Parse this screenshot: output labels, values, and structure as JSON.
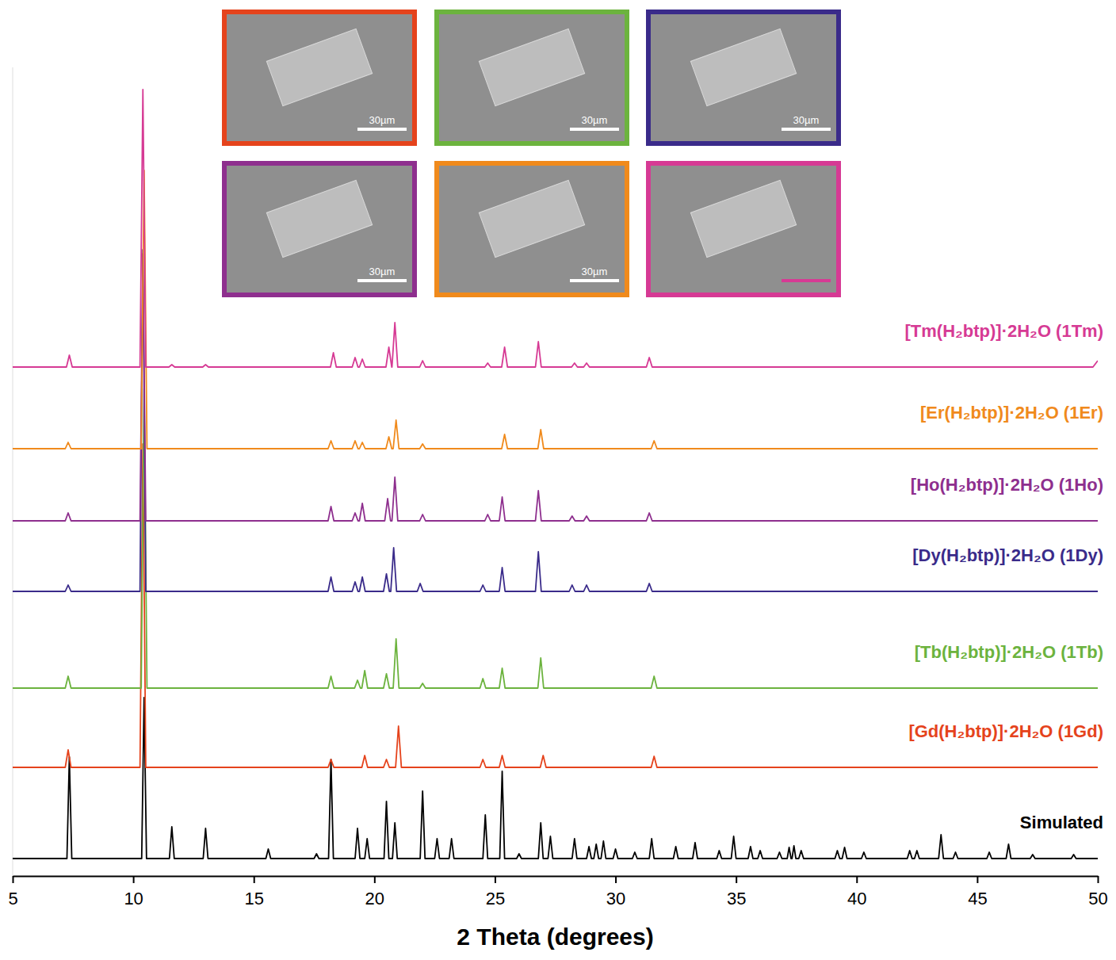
{
  "chart_data": {
    "type": "line",
    "xlabel": "2 Theta (degrees)",
    "xlim": [
      5,
      50
    ],
    "xticks": [
      5,
      10,
      15,
      20,
      25,
      30,
      35,
      40,
      45,
      50
    ],
    "ylim": [
      -2,
      100
    ],
    "tick_labels": "x",
    "grid": false,
    "series": [
      {
        "name": "[Tm(H₂btp)]·2H₂O (1Tm)",
        "color": "#d63a94",
        "x": [
          5,
          7.23,
          7.35,
          7.47,
          10.28,
          10.4,
          10.52,
          11.48,
          11.6,
          11.72,
          12.88,
          13.0,
          13.12,
          18.18,
          18.3,
          18.42,
          19.08,
          19.2,
          19.32,
          19.38,
          19.5,
          19.62,
          20.48,
          20.6,
          20.72,
          20.73,
          20.85,
          20.97,
          21.88,
          22.0,
          22.12,
          24.58,
          24.7,
          24.82,
          25.28,
          25.4,
          25.52,
          26.68,
          26.8,
          26.92,
          28.18,
          28.3,
          28.42,
          28.68,
          28.8,
          28.92,
          31.28,
          31.4,
          31.52,
          49.8,
          50
        ],
        "values": [
          62.2,
          62.2,
          63.7,
          62.2,
          62.2,
          97.2,
          62.2,
          62.2,
          62.5,
          62.2,
          62.2,
          62.5,
          62.2,
          62.2,
          64.0,
          62.2,
          62.2,
          63.4,
          62.2,
          62.2,
          63.2,
          62.2,
          62.2,
          64.7,
          62.2,
          62.2,
          67.8,
          62.2,
          62.2,
          63.0,
          62.2,
          62.2,
          62.7,
          62.2,
          62.2,
          64.7,
          62.2,
          62.2,
          65.4,
          62.2,
          62.2,
          62.7,
          62.2,
          62.2,
          62.7,
          62.2,
          62.2,
          63.4,
          62.2,
          62.2,
          63.0
        ]
      },
      {
        "name": "[Er(H₂btp)]·2H₂O (1Er)",
        "color": "#f08a1c",
        "x": [
          5,
          7.18,
          7.3,
          7.42,
          10.33,
          10.45,
          10.57,
          18.08,
          18.2,
          18.32,
          19.08,
          19.2,
          19.32,
          19.38,
          19.5,
          19.62,
          20.48,
          20.6,
          20.72,
          20.78,
          20.9,
          21.02,
          21.88,
          22.0,
          22.12,
          25.28,
          25.4,
          25.52,
          26.78,
          26.9,
          27.02,
          31.48,
          31.6,
          31.72,
          50
        ],
        "values": [
          51.9,
          51.9,
          52.7,
          51.9,
          51.9,
          87.0,
          51.9,
          51.9,
          52.9,
          51.9,
          51.9,
          52.9,
          51.9,
          51.9,
          52.7,
          51.9,
          51.9,
          53.4,
          51.9,
          51.9,
          55.5,
          51.9,
          51.9,
          52.5,
          51.9,
          51.9,
          53.7,
          51.9,
          51.9,
          54.3,
          51.9,
          51.9,
          52.9,
          51.9,
          51.9
        ]
      },
      {
        "name": "[Ho(H₂btp)]·2H₂O (1Ho)",
        "color": "#8e2f8e",
        "x": [
          5,
          7.18,
          7.3,
          7.42,
          10.28,
          10.4,
          10.52,
          18.08,
          18.2,
          18.32,
          19.08,
          19.2,
          19.32,
          19.38,
          19.5,
          19.62,
          20.43,
          20.55,
          20.67,
          20.73,
          20.85,
          20.97,
          21.88,
          22.0,
          22.12,
          24.58,
          24.7,
          24.82,
          25.18,
          25.3,
          25.42,
          26.68,
          26.8,
          26.92,
          28.08,
          28.2,
          28.32,
          28.68,
          28.8,
          28.92,
          31.28,
          31.4,
          31.52,
          50
        ],
        "values": [
          42.8,
          42.8,
          43.8,
          42.8,
          42.8,
          76.5,
          42.8,
          42.8,
          44.6,
          42.8,
          42.8,
          43.8,
          42.8,
          42.8,
          45.0,
          42.8,
          42.8,
          45.6,
          42.8,
          42.8,
          48.3,
          42.8,
          42.8,
          43.6,
          42.8,
          42.8,
          43.6,
          42.8,
          42.8,
          45.8,
          42.8,
          42.8,
          46.6,
          42.8,
          42.8,
          43.4,
          42.8,
          42.8,
          43.4,
          42.8,
          42.8,
          43.8,
          42.8,
          42.8
        ]
      },
      {
        "name": "[Dy(H₂btp)]·2H₂O (1Dy)",
        "color": "#3a2b8a",
        "x": [
          5,
          7.18,
          7.3,
          7.42,
          10.28,
          10.4,
          10.52,
          18.08,
          18.2,
          18.32,
          19.08,
          19.2,
          19.32,
          19.38,
          19.5,
          19.62,
          20.38,
          20.5,
          20.62,
          20.68,
          20.8,
          20.92,
          21.78,
          21.9,
          22.02,
          24.38,
          24.5,
          24.62,
          25.18,
          25.3,
          25.42,
          26.68,
          26.8,
          26.92,
          28.08,
          28.2,
          28.32,
          28.68,
          28.8,
          28.92,
          31.28,
          31.4,
          31.52,
          50
        ],
        "values": [
          33.9,
          33.9,
          34.7,
          33.9,
          33.9,
          77.0,
          33.9,
          33.9,
          35.7,
          33.9,
          33.9,
          35.1,
          33.9,
          33.9,
          35.7,
          33.9,
          33.9,
          36.1,
          33.9,
          33.9,
          39.4,
          33.9,
          33.9,
          34.9,
          33.9,
          33.9,
          34.7,
          33.9,
          33.9,
          36.9,
          33.9,
          33.9,
          38.9,
          33.9,
          33.9,
          34.7,
          33.9,
          33.9,
          34.7,
          33.9,
          33.9,
          34.9,
          33.9,
          33.9
        ]
      },
      {
        "name": "[Tb(H₂btp)]·2H₂O (1Tb)",
        "color": "#6cb33e",
        "x": [
          5,
          7.18,
          7.3,
          7.42,
          10.33,
          10.45,
          10.57,
          18.08,
          18.2,
          18.32,
          19.18,
          19.3,
          19.42,
          19.48,
          19.6,
          19.72,
          20.38,
          20.5,
          20.62,
          20.78,
          20.9,
          21.02,
          21.88,
          22.0,
          22.12,
          24.38,
          24.5,
          24.62,
          25.18,
          25.3,
          25.42,
          26.78,
          26.9,
          27.02,
          31.48,
          31.6,
          31.72,
          50
        ],
        "values": [
          21.7,
          21.7,
          23.2,
          21.7,
          21.7,
          59.5,
          21.7,
          21.7,
          23.2,
          21.7,
          21.7,
          22.7,
          21.7,
          21.7,
          23.9,
          21.7,
          21.7,
          23.5,
          21.7,
          21.7,
          27.9,
          21.7,
          21.7,
          22.3,
          21.7,
          21.7,
          22.9,
          21.7,
          21.7,
          24.2,
          21.7,
          21.7,
          25.5,
          21.7,
          21.7,
          23.2,
          21.7,
          21.7
        ]
      },
      {
        "name": "[Gd(H₂btp)]·2H₂O (1Gd)",
        "color": "#e5431c",
        "x": [
          5,
          7.18,
          7.3,
          7.42,
          10.28,
          10.4,
          10.52,
          18.08,
          18.2,
          18.32,
          19.48,
          19.6,
          19.72,
          20.38,
          20.5,
          20.62,
          20.88,
          21.0,
          21.12,
          24.38,
          24.5,
          24.62,
          25.18,
          25.3,
          25.42,
          26.88,
          27.0,
          27.12,
          31.48,
          31.6,
          31.72,
          50
        ],
        "values": [
          11.7,
          11.7,
          13.9,
          11.7,
          11.7,
          52.5,
          11.7,
          11.7,
          12.7,
          11.7,
          11.7,
          13.2,
          11.7,
          11.7,
          12.7,
          11.7,
          11.7,
          16.9,
          11.7,
          11.7,
          12.7,
          11.7,
          11.7,
          13.2,
          11.7,
          11.7,
          13.2,
          11.7,
          11.7,
          13.1,
          11.7,
          11.7
        ]
      },
      {
        "name": "Simulated",
        "color": "#000000",
        "x": [
          5,
          7.25,
          7.35,
          7.45,
          10.35,
          10.45,
          10.55,
          11.5,
          11.6,
          11.7,
          12.9,
          13.0,
          13.1,
          15.5,
          15.6,
          15.7,
          17.5,
          17.6,
          17.7,
          18.1,
          18.2,
          18.3,
          19.2,
          19.3,
          19.4,
          19.6,
          19.7,
          19.8,
          20.4,
          20.5,
          20.6,
          20.75,
          20.85,
          20.95,
          21.9,
          22.0,
          22.1,
          22.5,
          22.6,
          22.7,
          23.1,
          23.2,
          23.3,
          24.5,
          24.6,
          24.7,
          25.2,
          25.3,
          25.4,
          25.9,
          26.0,
          26.1,
          26.8,
          26.9,
          27.0,
          27.2,
          27.3,
          27.4,
          28.2,
          28.3,
          28.4,
          28.8,
          28.9,
          29.0,
          29.1,
          29.2,
          29.3,
          29.4,
          29.5,
          29.6,
          29.9,
          30.0,
          30.1,
          30.7,
          30.8,
          30.9,
          31.4,
          31.5,
          31.6,
          32.4,
          32.5,
          32.6,
          33.2,
          33.3,
          33.4,
          34.2,
          34.3,
          34.4,
          34.8,
          34.9,
          35.0,
          35.5,
          35.6,
          35.7,
          35.9,
          36.0,
          36.1,
          36.7,
          36.8,
          36.9,
          37.12,
          37.2,
          37.28,
          37.32,
          37.4,
          37.48,
          37.6,
          37.7,
          37.8,
          39.1,
          39.2,
          39.3,
          39.4,
          39.5,
          39.6,
          40.2,
          40.3,
          40.4,
          42.1,
          42.2,
          42.3,
          42.4,
          42.5,
          42.6,
          43.4,
          43.5,
          43.6,
          44.0,
          44.1,
          44.2,
          45.4,
          45.5,
          45.6,
          46.2,
          46.3,
          46.4,
          47.2,
          47.3,
          47.4,
          48.9,
          49.0,
          49.1,
          50
        ],
        "values": [
          0.2,
          0.2,
          13.0,
          0.2,
          0.2,
          20.5,
          0.2,
          0.2,
          4.2,
          0.2,
          0.2,
          4.0,
          0.2,
          0.2,
          1.4,
          0.2,
          0.2,
          0.8,
          0.2,
          0.2,
          12.7,
          0.2,
          0.2,
          4.0,
          0.2,
          0.2,
          2.7,
          0.2,
          0.2,
          7.4,
          0.2,
          0.2,
          4.7,
          0.2,
          0.2,
          8.7,
          0.2,
          0.2,
          2.7,
          0.2,
          0.2,
          2.7,
          0.2,
          0.2,
          5.7,
          0.2,
          0.2,
          11.2,
          0.2,
          0.2,
          0.8,
          0.2,
          0.2,
          4.7,
          0.2,
          0.2,
          3.0,
          0.2,
          0.2,
          2.7,
          0.2,
          0.2,
          1.7,
          0.2,
          0.2,
          2.0,
          0.2,
          0.2,
          2.4,
          0.2,
          0.2,
          1.4,
          0.2,
          0.2,
          1.0,
          0.2,
          0.2,
          2.7,
          0.2,
          0.2,
          1.7,
          0.2,
          0.2,
          2.2,
          0.2,
          0.2,
          1.2,
          0.2,
          0.2,
          3.0,
          0.2,
          0.2,
          1.7,
          0.2,
          0.2,
          1.2,
          0.2,
          0.2,
          1.0,
          0.2,
          0.2,
          1.6,
          0.2,
          0.2,
          1.8,
          0.2,
          0.2,
          1.2,
          0.2,
          0.2,
          1.2,
          0.2,
          0.2,
          1.6,
          0.2,
          0.2,
          1.0,
          0.2,
          0.2,
          1.2,
          0.2,
          0.2,
          1.2,
          0.2,
          0.2,
          3.2,
          0.2,
          0.2,
          1.0,
          0.2,
          0.2,
          1.0,
          0.2,
          0.2,
          2.0,
          0.2,
          0.2,
          0.7,
          0.2,
          0.2,
          0.7,
          0.2,
          0.2
        ]
      }
    ]
  },
  "insets": [
    {
      "color": "#e5431c",
      "scale_bar": "30µm"
    },
    {
      "color": "#6cb33e",
      "scale_bar": "30µm"
    },
    {
      "color": "#3a2b8a",
      "scale_bar": "30µm"
    },
    {
      "color": "#8e2f8e",
      "scale_bar": "30µm"
    },
    {
      "color": "#f08a1c",
      "scale_bar": "30µm"
    },
    {
      "color": "#d63a94"
    }
  ]
}
